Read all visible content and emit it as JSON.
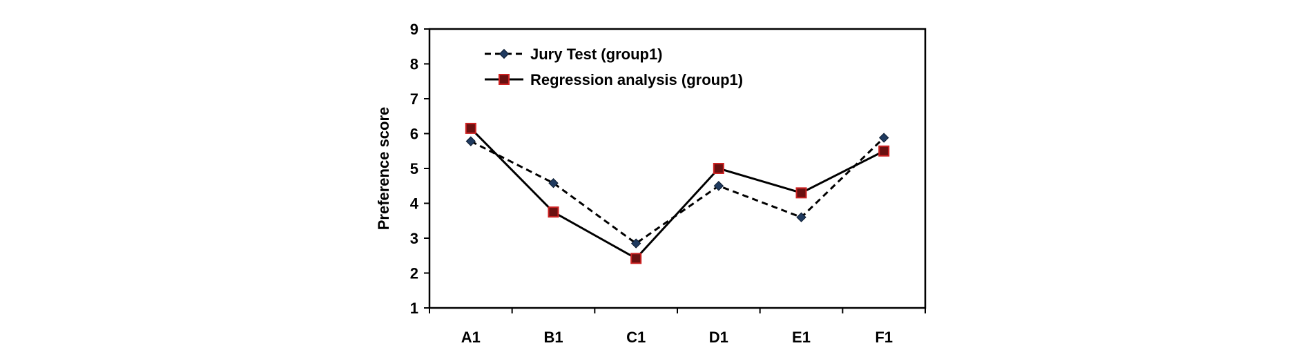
{
  "chart_data": {
    "type": "line",
    "title": "",
    "xlabel": "",
    "ylabel": "Preference score",
    "ylim": [
      1,
      9
    ],
    "yticks": [
      1,
      2,
      3,
      4,
      5,
      6,
      7,
      8,
      9
    ],
    "categories": [
      "A1",
      "B1",
      "C1",
      "D1",
      "E1",
      "F1"
    ],
    "grid": false,
    "legend_position": "top-left",
    "series": [
      {
        "name": "Jury Test (group1)",
        "values": [
          5.78,
          4.58,
          2.85,
          4.5,
          3.6,
          5.88
        ],
        "line_style": "dashed",
        "marker": "diamond",
        "color": "#000000",
        "marker_color": "#1f3a5f"
      },
      {
        "name": "Regression analysis (group1)",
        "values": [
          6.15,
          3.75,
          2.42,
          5.0,
          4.3,
          5.5
        ],
        "line_style": "solid",
        "marker": "square",
        "color": "#000000",
        "marker_color": "#6b1010",
        "marker_edge_color": "#cc2222"
      }
    ]
  }
}
